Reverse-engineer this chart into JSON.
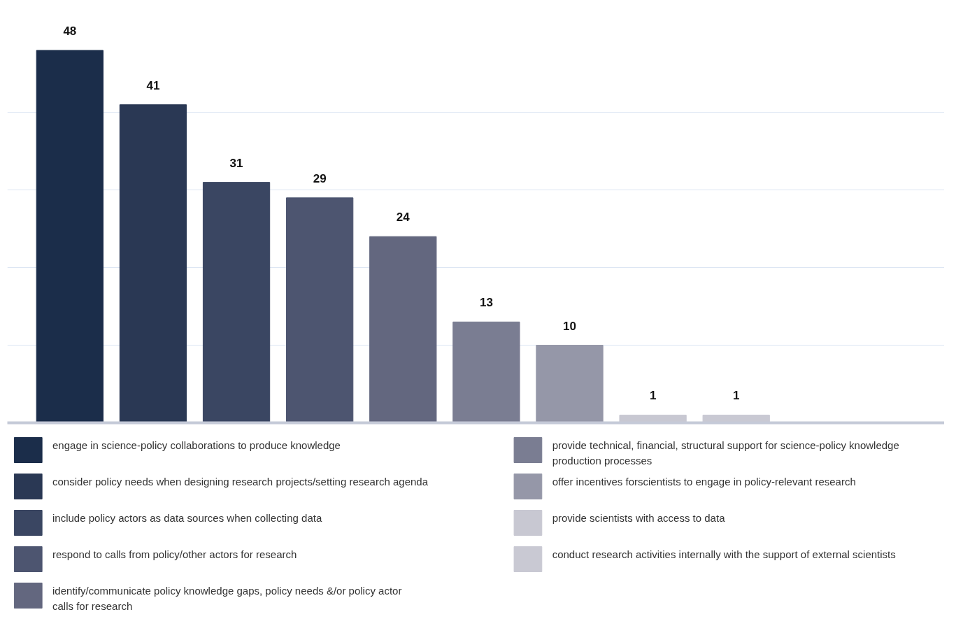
{
  "chart_data": {
    "type": "bar",
    "categories": [
      null,
      null,
      null,
      null,
      null,
      null,
      null,
      null,
      null
    ],
    "series": [
      {
        "name": "engage in science-policy collaborations to produce knowledge",
        "color": "#1b2d4a",
        "values": [
          48,
          null,
          null,
          null,
          null,
          null,
          null,
          null,
          null
        ]
      },
      {
        "name": "consider policy needs when designing research projects/setting research agenda",
        "color": "#2a3854",
        "values": [
          null,
          41,
          null,
          null,
          null,
          null,
          null,
          null,
          null
        ]
      },
      {
        "name": "include policy actors as data sources when collecting data",
        "color": "#3a4662",
        "values": [
          null,
          null,
          31,
          null,
          null,
          null,
          null,
          null,
          null
        ]
      },
      {
        "name": "respond to calls from policy/other actors for research",
        "color": "#4d5570",
        "values": [
          null,
          null,
          null,
          29,
          null,
          null,
          null,
          null,
          null
        ]
      },
      {
        "name": "identify/communicate policy knowledge gaps, policy needs &/or policy actor calls for research",
        "color": "#63677f",
        "values": [
          null,
          null,
          null,
          null,
          24,
          null,
          null,
          null,
          null
        ]
      },
      {
        "name": "provide technical, financial, structural support for science-policy knowledge production processes",
        "color": "#7a7d92",
        "values": [
          null,
          null,
          null,
          null,
          null,
          13,
          null,
          null,
          null
        ]
      },
      {
        "name": "offer incentives forscientists to engage in policy-relevant research",
        "color": "#9597a8",
        "values": [
          null,
          null,
          null,
          null,
          null,
          null,
          10,
          null,
          null
        ]
      },
      {
        "name": "provide scientists with access to data",
        "color": "#c8c8d2",
        "values": [
          null,
          null,
          null,
          null,
          null,
          null,
          null,
          1,
          null
        ]
      },
      {
        "name": "conduct research activities internally with the support of external scientists",
        "color": "#c9c9d3",
        "values": [
          null,
          null,
          null,
          null,
          null,
          null,
          null,
          null,
          1
        ]
      }
    ],
    "yticks": [
      {
        "value": 10,
        "label": null
      },
      {
        "value": 20,
        "label": null
      },
      {
        "value": 30,
        "label": null
      },
      {
        "value": 40,
        "label": null
      }
    ],
    "stacked": true,
    "grid": "y",
    "tick_labels": false,
    "data_labels": true,
    "legend": "bottom"
  }
}
